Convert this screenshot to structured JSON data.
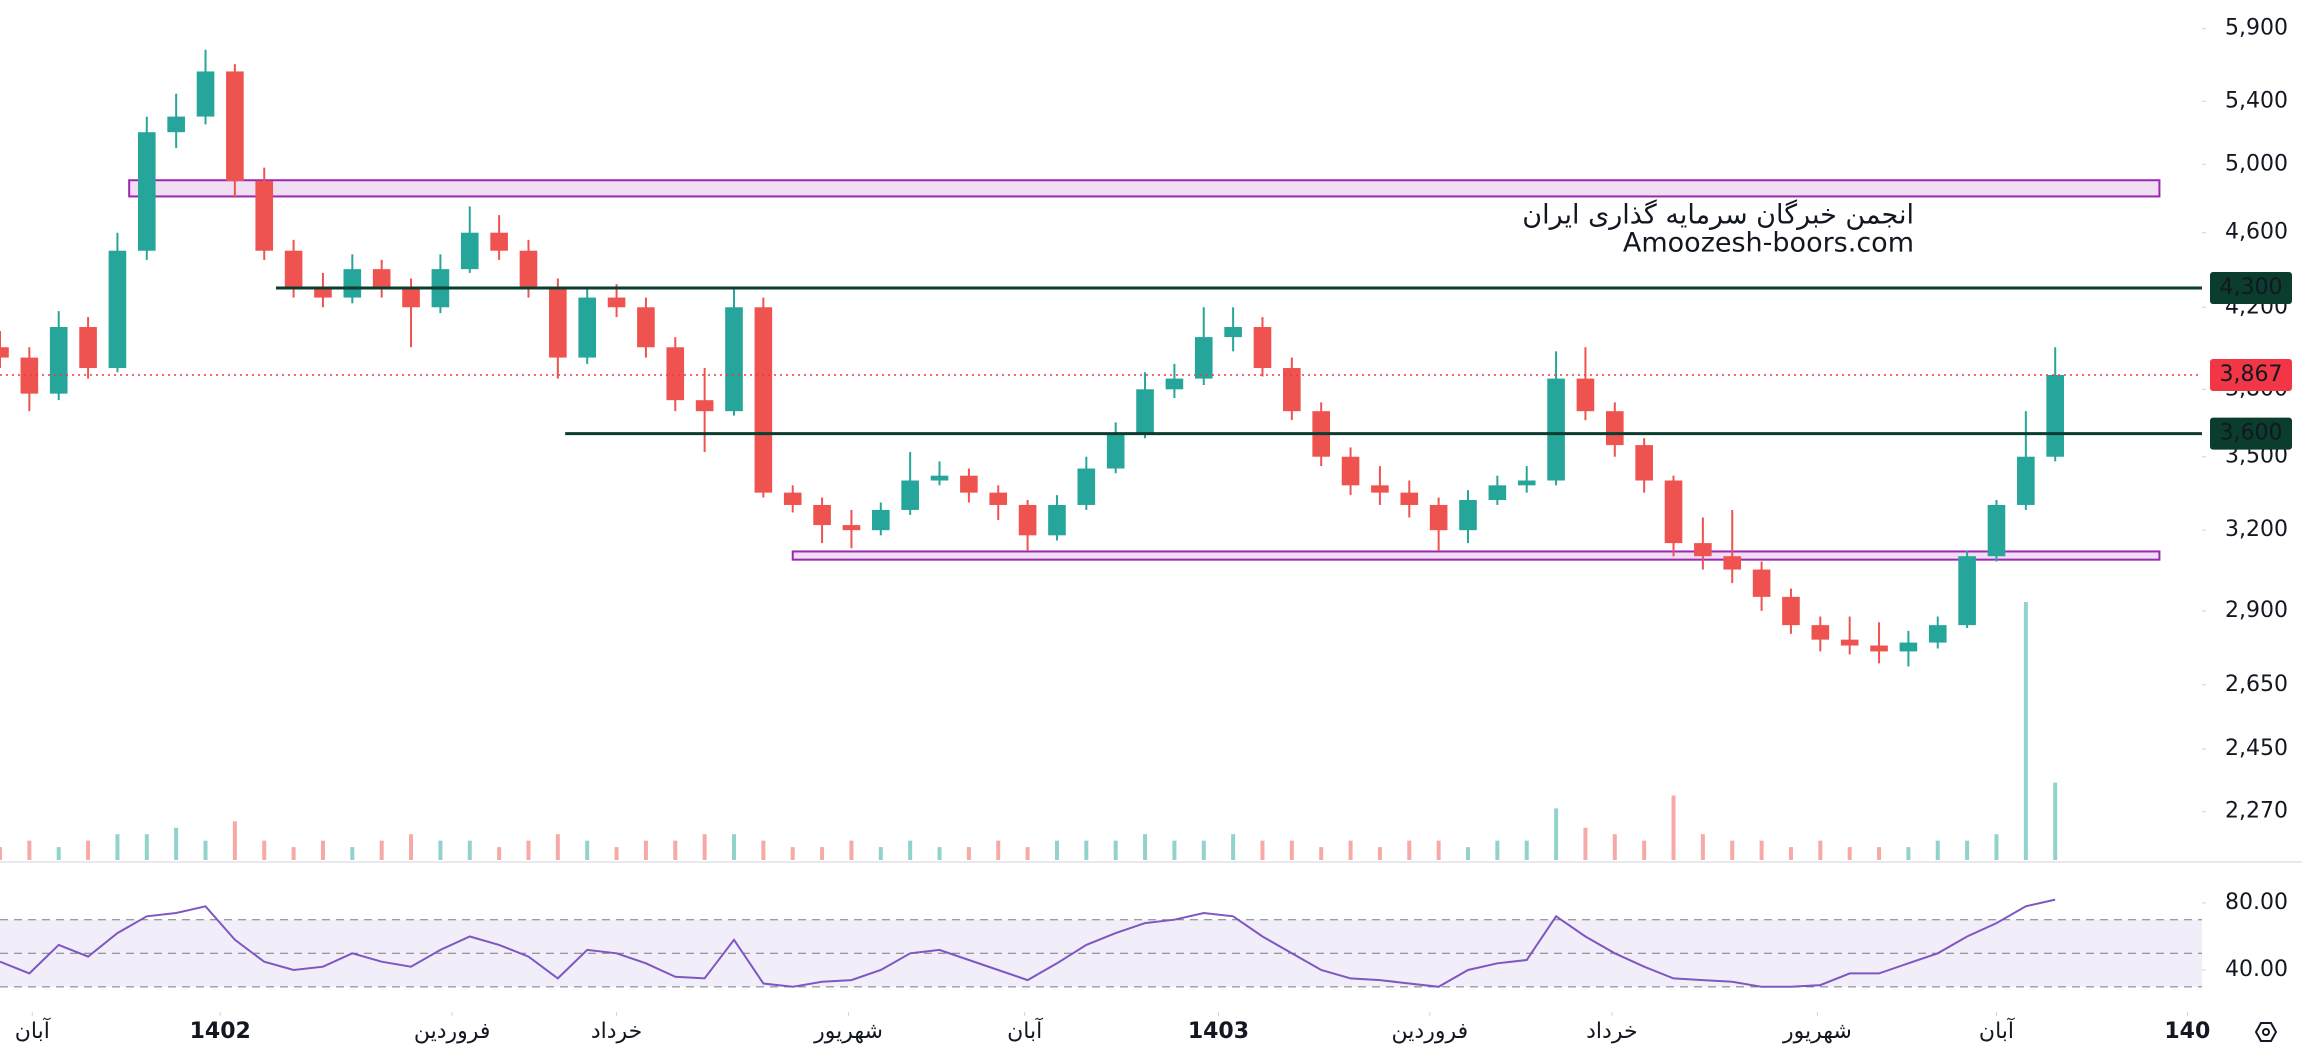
{
  "chart_data": {
    "type": "candlestick",
    "xlim": [
      0,
      75
    ],
    "xticks": [
      {
        "value": 1.1,
        "label": "آبان"
      },
      {
        "value": 7.5,
        "label": "1402",
        "bold": true
      },
      {
        "value": 15.4,
        "label": "فروردین"
      },
      {
        "value": 21,
        "label": "خرداد"
      },
      {
        "value": 28.9,
        "label": "شهریور"
      },
      {
        "value": 34.9,
        "label": "آبان"
      },
      {
        "value": 41.5,
        "label": "1403",
        "bold": true
      },
      {
        "value": 48.7,
        "label": "فروردین"
      },
      {
        "value": 54.9,
        "label": "خرداد"
      },
      {
        "value": 61.9,
        "label": "شهریور"
      },
      {
        "value": 68,
        "label": "آبان"
      },
      {
        "value": 74.5,
        "label": "140",
        "bold": true
      }
    ],
    "ylim": [
      2140,
      6110
    ],
    "log_scale": true,
    "yticks": [
      {
        "value": 5900,
        "label": "5,900"
      },
      {
        "value": 5400,
        "label": "5,400"
      },
      {
        "value": 5000,
        "label": "5,000"
      },
      {
        "value": 4600,
        "label": "4,600"
      },
      {
        "value": 4200,
        "label": "4,200"
      },
      {
        "value": 3800,
        "label": "3,800"
      },
      {
        "value": 3500,
        "label": "3,500"
      },
      {
        "value": 3200,
        "label": "3,200"
      },
      {
        "value": 2900,
        "label": "2,900"
      },
      {
        "value": 2650,
        "label": "2,650"
      },
      {
        "value": 2450,
        "label": "2,450"
      },
      {
        "value": 2270,
        "label": "2,270"
      }
    ],
    "open": [
      4000,
      3950,
      3780,
      4100,
      3900,
      4500,
      5200,
      5300,
      5600,
      4900,
      4500,
      4300,
      4250,
      4400,
      4300,
      4200,
      4400,
      4600,
      4500,
      4300,
      3950,
      4250,
      4200,
      4000,
      3750,
      3700,
      4200,
      3350,
      3300,
      3220,
      3200,
      3280,
      3400,
      3420,
      3350,
      3300,
      3180,
      3300,
      3450,
      3600,
      3800,
      3850,
      4050,
      4100,
      3900,
      3700,
      3500,
      3380,
      3350,
      3300,
      3200,
      3320,
      3380,
      3400,
      3850,
      3700,
      3550,
      3400,
      3150,
      3100,
      3050,
      2950,
      2850,
      2800,
      2780,
      2760,
      2790,
      2850,
      3100,
      3300,
      3500
    ],
    "high": [
      4080,
      4000,
      4180,
      4150,
      4600,
      5300,
      5450,
      5750,
      5650,
      4980,
      4560,
      4380,
      4480,
      4450,
      4350,
      4480,
      4750,
      4700,
      4560,
      4350,
      4300,
      4320,
      4250,
      4050,
      3900,
      4300,
      4250,
      3380,
      3330,
      3280,
      3310,
      3520,
      3480,
      3450,
      3380,
      3320,
      3340,
      3500,
      3650,
      3880,
      3920,
      4200,
      4200,
      4150,
      3950,
      3740,
      3540,
      3460,
      3400,
      3330,
      3360,
      3420,
      3460,
      3980,
      4000,
      3740,
      3580,
      3420,
      3250,
      3280,
      3080,
      2980,
      2880,
      2880,
      2860,
      2830,
      2880,
      3120,
      3320,
      3700,
      4000
    ],
    "low": [
      3900,
      3700,
      3750,
      3850,
      3880,
      4450,
      5100,
      5250,
      4800,
      4450,
      4250,
      4200,
      4220,
      4250,
      4000,
      4170,
      4380,
      4450,
      4250,
      3850,
      3920,
      4150,
      3950,
      3700,
      3520,
      3680,
      3330,
      3270,
      3150,
      3130,
      3180,
      3260,
      3380,
      3310,
      3240,
      3120,
      3160,
      3280,
      3430,
      3580,
      3760,
      3820,
      3980,
      3860,
      3660,
      3460,
      3340,
      3300,
      3250,
      3120,
      3150,
      3300,
      3350,
      3380,
      3660,
      3500,
      3350,
      3100,
      3050,
      3000,
      2900,
      2820,
      2760,
      2750,
      2720,
      2710,
      2770,
      2840,
      3080,
      3280,
      3480
    ],
    "close": [
      3950,
      3780,
      4100,
      3900,
      4500,
      5200,
      5300,
      5600,
      4900,
      4500,
      4300,
      4250,
      4400,
      4300,
      4200,
      4400,
      4600,
      4500,
      4300,
      3950,
      4250,
      4200,
      4000,
      3750,
      3700,
      4200,
      3350,
      3300,
      3220,
      3200,
      3280,
      3400,
      3420,
      3350,
      3300,
      3180,
      3300,
      3450,
      3600,
      3800,
      3850,
      4050,
      4100,
      3900,
      3700,
      3500,
      3380,
      3350,
      3300,
      3200,
      3320,
      3380,
      3400,
      3850,
      3700,
      3550,
      3400,
      3150,
      3100,
      3050,
      2950,
      2850,
      2800,
      2780,
      2760,
      2790,
      2850,
      3100,
      3300,
      3500,
      3867
    ],
    "up_color": "#26a69a",
    "down_color": "#ef5350",
    "volume": [
      2,
      3,
      2,
      3,
      4,
      4,
      5,
      3,
      6,
      3,
      2,
      3,
      2,
      3,
      4,
      3,
      3,
      2,
      3,
      4,
      3,
      2,
      3,
      3,
      4,
      4,
      3,
      2,
      2,
      3,
      2,
      3,
      2,
      2,
      3,
      2,
      3,
      3,
      3,
      4,
      3,
      3,
      4,
      3,
      3,
      2,
      3,
      2,
      3,
      3,
      2,
      3,
      3,
      8,
      5,
      4,
      3,
      10,
      4,
      3,
      3,
      2,
      3,
      2,
      2,
      2,
      3,
      3,
      4,
      40,
      12
    ],
    "levels": [
      {
        "value": 4300,
        "label": "4,300",
        "start": 9.4,
        "color": "#0b3d2e"
      },
      {
        "value": 3600,
        "label": "3,600",
        "start": 19.25,
        "color": "#0b3d2e"
      }
    ],
    "last_price": {
      "value": 3867,
      "label": "3,867",
      "color": "#f23645"
    },
    "zones": [
      {
        "low": 4808,
        "high": 4904,
        "start": 4.4,
        "end": 73.55
      },
      {
        "low": 3087,
        "high": 3118,
        "start": 27,
        "end": 73.55
      }
    ],
    "watermark": [
      "انجمن خبرگان سرمایه گذاری ایران",
      "Amoozesh-boors.com"
    ],
    "indicator": {
      "type": "line",
      "color": "#7e57c2",
      "ylim": [
        15,
        102
      ],
      "yticks": [
        {
          "value": 80,
          "label": "80.00"
        },
        {
          "value": 40,
          "label": "40.00"
        }
      ],
      "levels": [
        30,
        50,
        70
      ],
      "values": [
        45,
        38,
        55,
        48,
        62,
        72,
        74,
        78,
        58,
        45,
        40,
        42,
        50,
        45,
        42,
        52,
        60,
        55,
        48,
        35,
        52,
        50,
        44,
        36,
        35,
        58,
        32,
        30,
        33,
        34,
        40,
        50,
        52,
        46,
        40,
        34,
        44,
        55,
        62,
        68,
        70,
        74,
        72,
        60,
        50,
        40,
        35,
        34,
        32,
        30,
        40,
        44,
        46,
        72,
        60,
        50,
        42,
        35,
        34,
        33,
        30,
        30,
        31,
        38,
        38,
        44,
        50,
        60,
        68,
        78,
        82
      ]
    }
  }
}
